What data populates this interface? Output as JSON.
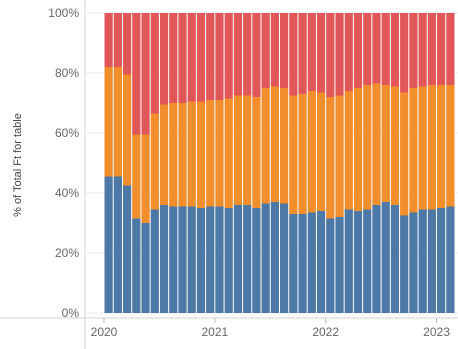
{
  "chart_data": {
    "type": "bar",
    "stacked": true,
    "normalized": true,
    "ylabel": "% of Total Ft for table",
    "xlabel": "",
    "title": "",
    "ylim": [
      0,
      100
    ],
    "y_ticks": [
      "0%",
      "20%",
      "40%",
      "60%",
      "80%",
      "100%"
    ],
    "x_ticks": [
      {
        "label": "2020",
        "index": 0
      },
      {
        "label": "2021",
        "index": 12
      },
      {
        "label": "2022",
        "index": 24
      },
      {
        "label": "2023",
        "index": 36
      }
    ],
    "grid": "horizontal",
    "series": [
      {
        "color": "#4e79a7",
        "values": [
          45.5,
          45.5,
          42.5,
          31.5,
          30.0,
          34.5,
          36.0,
          35.5,
          35.5,
          35.5,
          35.0,
          35.5,
          35.5,
          35.0,
          36.0,
          36.0,
          35.0,
          36.5,
          37.0,
          36.5,
          33.0,
          33.0,
          33.5,
          34.0,
          31.5,
          32.0,
          34.5,
          34.0,
          34.5,
          36.0,
          37.0,
          36.0,
          32.5,
          33.5,
          34.5,
          34.5,
          35.0,
          35.5
        ]
      },
      {
        "color": "#f28e2b",
        "values": [
          36.5,
          36.5,
          37.0,
          28.0,
          29.5,
          32.0,
          33.5,
          34.5,
          34.5,
          35.0,
          35.5,
          35.5,
          35.5,
          36.5,
          36.5,
          36.5,
          37.0,
          38.5,
          38.5,
          38.5,
          39.5,
          40.0,
          40.5,
          39.5,
          40.5,
          40.5,
          39.5,
          41.0,
          41.5,
          40.5,
          39.0,
          39.5,
          41.0,
          41.5,
          41.0,
          41.5,
          41.0,
          40.5
        ]
      },
      {
        "color": "#e15759",
        "values": [
          18.0,
          18.0,
          20.5,
          40.5,
          40.5,
          33.5,
          30.5,
          30.0,
          30.0,
          29.5,
          29.5,
          29.0,
          29.0,
          28.5,
          27.5,
          27.5,
          28.0,
          25.0,
          24.5,
          25.0,
          27.5,
          27.0,
          26.0,
          26.5,
          28.0,
          27.5,
          26.0,
          25.0,
          24.0,
          23.5,
          24.0,
          24.5,
          26.5,
          25.0,
          24.5,
          24.0,
          24.0,
          24.0
        ]
      }
    ]
  }
}
